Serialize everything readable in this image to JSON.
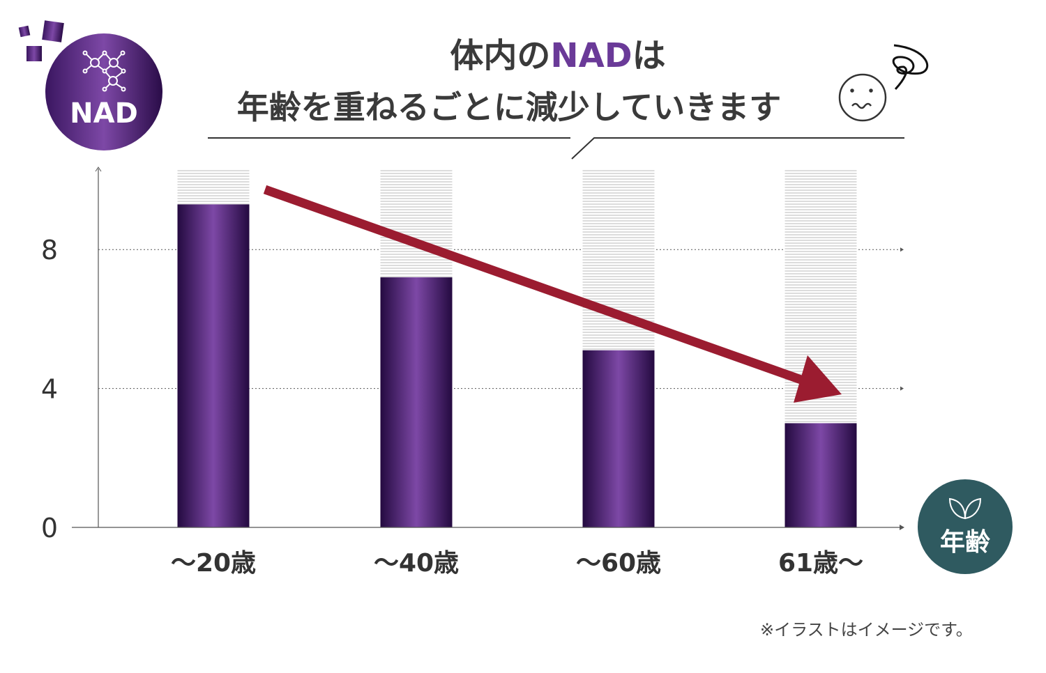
{
  "chart_data": {
    "type": "bar",
    "title_line1_pre": "体内の",
    "title_line1_accent": "NAD",
    "title_line1_post": "は",
    "title_line2": "年齢を重ねるごとに減少していきます",
    "categories": [
      "〜20歳",
      "〜40歳",
      "〜60歳",
      "61歳〜"
    ],
    "values": [
      9.3,
      7.2,
      5.1,
      3.0
    ],
    "background_max": 10.3,
    "yticks": [
      0,
      4,
      8
    ],
    "ylim": [
      0,
      10.3
    ],
    "ylabel_badge": "NAD",
    "xlabel_badge": "年齢",
    "grid": "dotted horizontal at 4 and 8",
    "trend": "decreasing arrow",
    "footnote": "※イラストはイメージです。",
    "colors": {
      "bar": "#4a2270",
      "bar_highlight": "#7d48a6",
      "arrow": "#9b1c30",
      "age_badge": "#2f5a60",
      "accent": "#6a3a98"
    }
  }
}
